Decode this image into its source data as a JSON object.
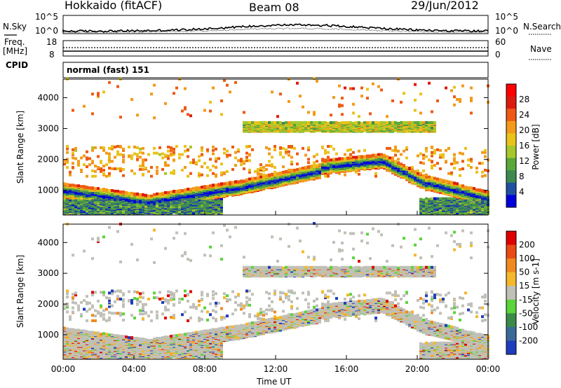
{
  "header": {
    "station": "Hokkaido (fitACF)",
    "beam": "Beam 08",
    "date": "29/Jun/2012"
  },
  "noise_panel": {
    "left_label": "N.Sky",
    "right_label": "N.Search",
    "left_ticks": [
      "10^5",
      "10^0"
    ],
    "right_ticks": [
      "10^5",
      "10^0"
    ]
  },
  "freq_panel": {
    "left_label_1": "Freq.",
    "left_label_2": "[MHz]",
    "right_label": "Nave",
    "left_ticks": [
      "18",
      "8"
    ],
    "right_ticks": [
      "60",
      "0"
    ]
  },
  "cpid_panel": {
    "label": "CPID",
    "mode": "normal (fast) 151"
  },
  "chart_data": [
    {
      "type": "heatmap",
      "name": "power",
      "ylabel": "Slant Range [km]",
      "yticks": [
        1000,
        2000,
        3000,
        4000
      ],
      "ylim": [
        200,
        4600
      ],
      "colorbar_label": "Power [dB]",
      "colorbar_ticks": [
        "28",
        "24",
        "20",
        "16",
        "12",
        "8",
        "4"
      ],
      "colors": [
        "#0000dd",
        "#2050a0",
        "#3d8a50",
        "#5aa83a",
        "#a6c82a",
        "#e9c31a",
        "#f39a1a",
        "#ee5a15",
        "#dd1a10",
        "#ff0000"
      ]
    },
    {
      "type": "heatmap",
      "name": "velocity",
      "ylabel": "Slant Range [km]",
      "yticks": [
        1000,
        2000,
        3000,
        4000
      ],
      "ylim": [
        200,
        4600
      ],
      "xlabel": "Time UT",
      "xticks": [
        "00:00",
        "04:00",
        "08:00",
        "12:00",
        "16:00",
        "20:00",
        "00:00"
      ],
      "colorbar_label": "Velocity [m s-1]",
      "colorbar_ticks": [
        "200",
        "100",
        "50",
        "15",
        "-15",
        "-50",
        "-100",
        "-200"
      ],
      "colors": [
        "#1e3cbe",
        "#3a6a9a",
        "#3a8a4a",
        "#5ad43a",
        "#c0c0b8",
        "#f5b82a",
        "#f08a20",
        "#ea4a14",
        "#e00000"
      ]
    }
  ]
}
